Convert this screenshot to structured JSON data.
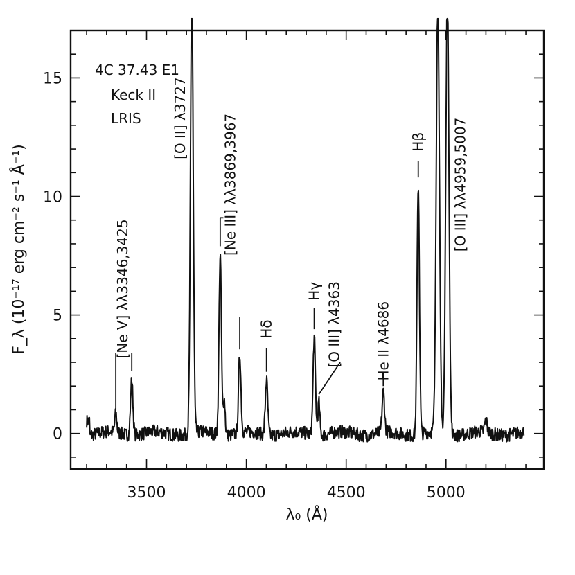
{
  "chart_data": {
    "type": "line",
    "corner_text": [
      "4C 37.43 E1",
      "Keck II",
      "LRIS"
    ],
    "xlabel": "λ₀ (Å)",
    "ylabel": "F_λ (10⁻¹⁷ erg cm⁻² s⁻¹ Å⁻¹)",
    "xlim": [
      3120,
      5490
    ],
    "ylim": [
      -1.5,
      17.0
    ],
    "xticks": [
      3500,
      4000,
      4500,
      5000
    ],
    "xtick_labels": [
      "3500",
      "4000",
      "4500",
      "5000"
    ],
    "yticks": [
      0,
      5,
      10,
      15
    ],
    "ytick_labels": [
      "0",
      "5",
      "10",
      "15"
    ],
    "grid": false,
    "legend": "none",
    "continuum": {
      "x_start": 3200,
      "x_end": 5390,
      "baseline": 0.0
    },
    "peaks": [
      {
        "x": 3346,
        "y": 0.8,
        "w": 5
      },
      {
        "x": 3426,
        "y": 2.35,
        "w": 6
      },
      {
        "x": 3727,
        "y": 18.5,
        "w": 7
      },
      {
        "x": 3869,
        "y": 7.6,
        "w": 6
      },
      {
        "x": 3889,
        "y": 1.5,
        "w": 5
      },
      {
        "x": 3967,
        "y": 3.3,
        "w": 6
      },
      {
        "x": 4101,
        "y": 2.3,
        "w": 6
      },
      {
        "x": 4340,
        "y": 4.1,
        "w": 6
      },
      {
        "x": 4363,
        "y": 1.4,
        "w": 5
      },
      {
        "x": 4686,
        "y": 1.7,
        "w": 6
      },
      {
        "x": 4861,
        "y": 10.5,
        "w": 6
      },
      {
        "x": 4959,
        "y": 18.5,
        "w": 8
      },
      {
        "x": 5007,
        "y": 18.5,
        "w": 8
      },
      {
        "x": 5200,
        "y": 0.5,
        "w": 6
      }
    ],
    "annotations": [
      {
        "text": "[Ne V] λλ3346,3425",
        "x": 3380,
        "y": 6.1,
        "ticks": [
          {
            "x": 3346,
            "y0": 3.4,
            "y1": 1.0
          },
          {
            "x": 3426,
            "y0": 3.4,
            "y1": 2.65
          }
        ]
      },
      {
        "text": "[O II] λ3727",
        "x": 3668,
        "y": 13.3,
        "ticks": []
      },
      {
        "text": "[Ne III] λλ3869,3967",
        "x": 3920,
        "y": 10.5,
        "ticks": [
          {
            "x": 3869,
            "y0": 9.1,
            "y1": 7.9
          },
          {
            "x": 3967,
            "y0": 4.9,
            "y1": 3.55
          }
        ]
      },
      {
        "text": "Hδ",
        "x": 4101,
        "y": 4.4,
        "ticks": [
          {
            "x": 4101,
            "y0": 3.6,
            "y1": 2.6
          }
        ]
      },
      {
        "text": "Hγ",
        "x": 4340,
        "y": 6.0,
        "ticks": [
          {
            "x": 4340,
            "y0": 5.3,
            "y1": 4.4
          }
        ]
      },
      {
        "text": "[O III] λ4363",
        "x": 4440,
        "y": 4.6,
        "ticks": [
          {
            "x": 4470,
            "y0": 3.0,
            "y1": 1.65
          }
        ]
      },
      {
        "text": "He II λ4686",
        "x": 4686,
        "y": 3.9,
        "ticks": [
          {
            "x": 4686,
            "y0": 2.6,
            "y1": 2.0
          }
        ]
      },
      {
        "text": "Hβ",
        "x": 4861,
        "y": 12.3,
        "ticks": [
          {
            "x": 4861,
            "y0": 11.5,
            "y1": 10.8
          }
        ]
      },
      {
        "text": "[O III] λλ4959,5007",
        "x": 5072,
        "y": 10.5,
        "ticks": []
      }
    ]
  }
}
